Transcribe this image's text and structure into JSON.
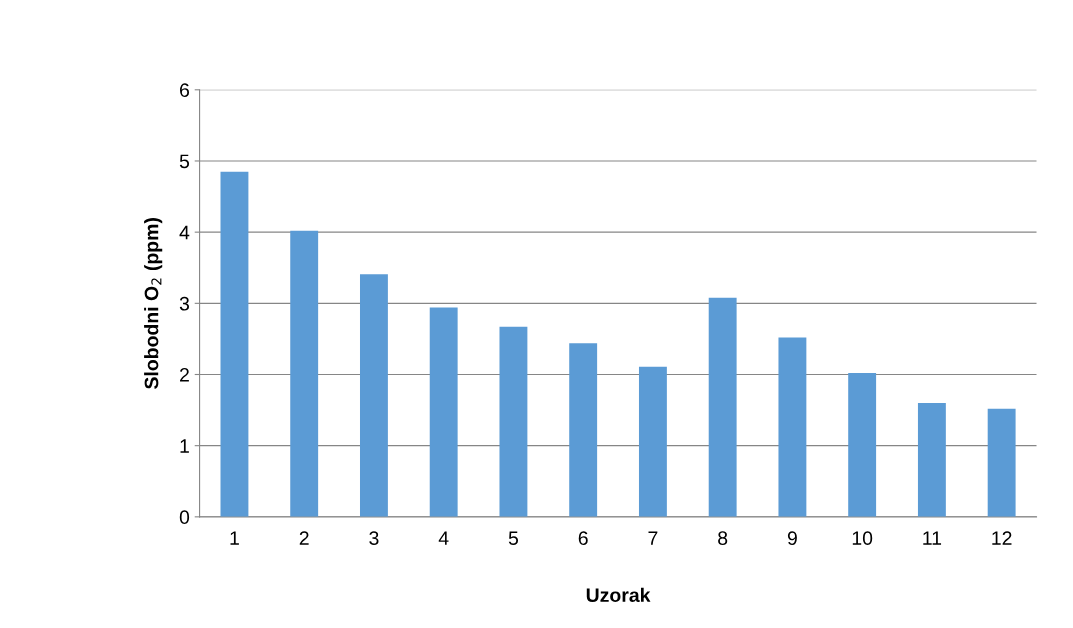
{
  "chart_data": {
    "type": "bar",
    "xlabel": "Uzorak",
    "ylabel": "Slobodni O$_{2}$ (ppm)",
    "categories": [
      "1",
      "2",
      "3",
      "4",
      "5",
      "6",
      "7",
      "8",
      "9",
      "10",
      "11",
      "12"
    ],
    "values": [
      4.85,
      4.02,
      3.41,
      2.94,
      2.67,
      2.44,
      2.11,
      3.08,
      2.52,
      2.02,
      1.6,
      1.52
    ],
    "color": "#5b9bd5",
    "ylim": [
      0,
      6
    ],
    "yticks": [
      0,
      1,
      2,
      3,
      4,
      5,
      6
    ],
    "grid": "y",
    "legend": false
  }
}
